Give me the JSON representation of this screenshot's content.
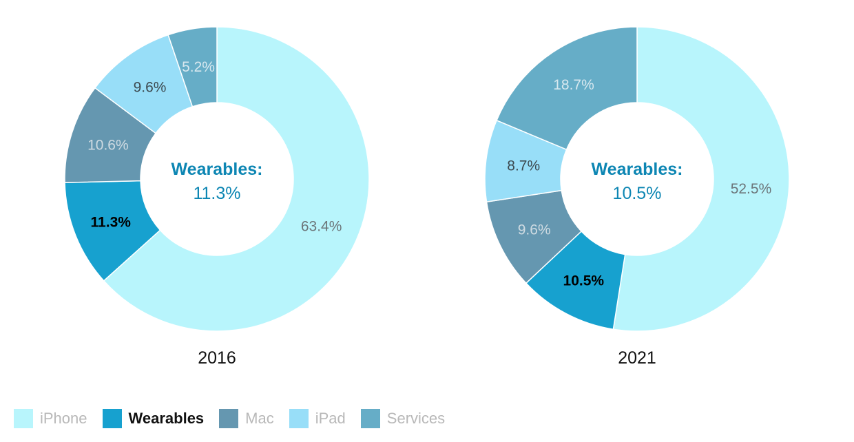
{
  "chart_data": {
    "type": "pie",
    "highlight": "Wearables",
    "categories": [
      "iPhone",
      "Wearables",
      "Mac",
      "iPad",
      "Services"
    ],
    "colors": {
      "iPhone": "#b8f5fc",
      "Wearables": "#17a1cf",
      "Mac": "#6597b0",
      "iPad": "#98def8",
      "Services": "#66adc7",
      "center_text": "#0d86b3"
    },
    "charts": [
      {
        "title": "2016",
        "center_label": "Wearables:",
        "center_value": "11.3%",
        "values": [
          63.4,
          11.3,
          10.6,
          9.6,
          5.2
        ],
        "labels": [
          "63.4%",
          "11.3%",
          "10.6%",
          "9.6%",
          "5.2%"
        ]
      },
      {
        "title": "2021",
        "center_label": "Wearables:",
        "center_value": "10.5%",
        "values": [
          52.5,
          10.5,
          9.6,
          8.7,
          18.7
        ],
        "labels": [
          "52.5%",
          "10.5%",
          "9.6%",
          "8.7%",
          "18.7%"
        ]
      }
    ],
    "legend": [
      "iPhone",
      "Wearables",
      "Mac",
      "iPad",
      "Services"
    ]
  }
}
